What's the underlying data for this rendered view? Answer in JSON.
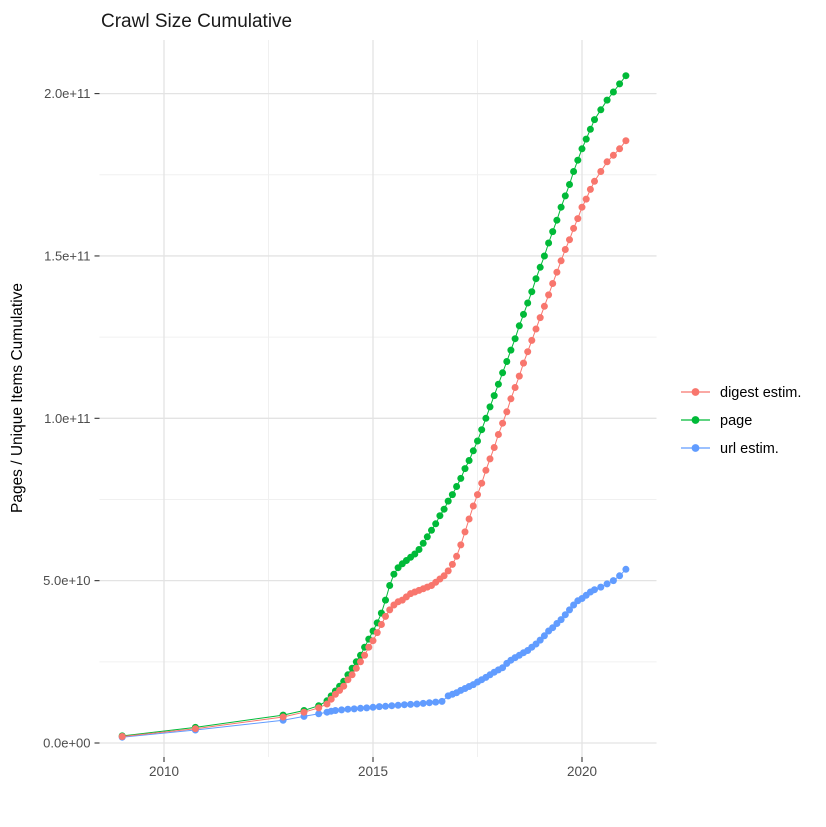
{
  "title": "Crawl Size Cumulative",
  "y_axis": {
    "label": "Pages / Unique Items Cumulative",
    "ticks": [
      {
        "value": 0,
        "label": "0.0e+00"
      },
      {
        "value": 50,
        "label": "5.0e+10"
      },
      {
        "value": 100,
        "label": "1.0e+11"
      },
      {
        "value": 150,
        "label": "1.5e+11"
      },
      {
        "value": 200,
        "label": "2.0e+11"
      }
    ],
    "minor_ticks": [
      25,
      75,
      125,
      175
    ]
  },
  "x_axis": {
    "ticks": [
      {
        "value": 2010,
        "label": "2010"
      },
      {
        "value": 2015,
        "label": "2015"
      },
      {
        "value": 2020,
        "label": "2020"
      }
    ],
    "minor_ticks": [
      2012.5,
      2017.5
    ]
  },
  "legend": {
    "items": [
      {
        "id": "digest",
        "label": "digest estim.",
        "color": "#F8766D"
      },
      {
        "id": "page",
        "label": "page",
        "color": "#00BA38"
      },
      {
        "id": "url",
        "label": "url estim.",
        "color": "#619CFF"
      }
    ]
  },
  "colors": {
    "digest": "#F8766D",
    "page": "#00BA38",
    "url": "#619CFF",
    "grid_major": "#E3E3E3",
    "grid_minor": "#F0F0F0",
    "tick_mark": "#333333",
    "tick_text": "#4D4D4D",
    "title_text": "#1A1A1A",
    "axis_title_text": "#000000"
  },
  "chart_data": {
    "type": "line",
    "title": "Crawl Size Cumulative",
    "xlabel": "",
    "ylabel": "Pages / Unique Items Cumulative",
    "x_unit": "year (decimal)",
    "y_unit": "billions (1e9) of pages / unique items",
    "xlim": [
      2008.5,
      2021.8
    ],
    "ylim_billions": [
      -4,
      216
    ],
    "grid": true,
    "legend_position": "right",
    "series": [
      {
        "name": "url estim.",
        "color": "#619CFF",
        "points": [
          [
            2009.0,
            1.8
          ],
          [
            2010.75,
            4.0
          ],
          [
            2012.85,
            7.0
          ],
          [
            2013.35,
            8.2
          ],
          [
            2013.7,
            9.0
          ],
          [
            2013.9,
            9.5
          ],
          [
            2014.0,
            9.8
          ],
          [
            2014.1,
            10.0
          ],
          [
            2014.25,
            10.2
          ],
          [
            2014.4,
            10.4
          ],
          [
            2014.55,
            10.5
          ],
          [
            2014.7,
            10.7
          ],
          [
            2014.85,
            10.8
          ],
          [
            2015.0,
            11.0
          ],
          [
            2015.15,
            11.2
          ],
          [
            2015.3,
            11.3
          ],
          [
            2015.45,
            11.5
          ],
          [
            2015.6,
            11.6
          ],
          [
            2015.75,
            11.8
          ],
          [
            2015.9,
            11.9
          ],
          [
            2016.05,
            12.0
          ],
          [
            2016.2,
            12.2
          ],
          [
            2016.35,
            12.4
          ],
          [
            2016.5,
            12.6
          ],
          [
            2016.65,
            12.8
          ],
          [
            2016.8,
            14.5
          ],
          [
            2016.9,
            15.0
          ],
          [
            2017.0,
            15.5
          ],
          [
            2017.1,
            16.2
          ],
          [
            2017.2,
            16.8
          ],
          [
            2017.3,
            17.4
          ],
          [
            2017.4,
            18.0
          ],
          [
            2017.5,
            18.8
          ],
          [
            2017.6,
            19.5
          ],
          [
            2017.7,
            20.2
          ],
          [
            2017.8,
            21.0
          ],
          [
            2017.9,
            21.8
          ],
          [
            2018.0,
            22.5
          ],
          [
            2018.1,
            23.2
          ],
          [
            2018.2,
            24.5
          ],
          [
            2018.3,
            25.5
          ],
          [
            2018.4,
            26.3
          ],
          [
            2018.5,
            27.0
          ],
          [
            2018.6,
            27.8
          ],
          [
            2018.7,
            28.5
          ],
          [
            2018.8,
            29.5
          ],
          [
            2018.9,
            30.5
          ],
          [
            2019.0,
            31.7
          ],
          [
            2019.1,
            33.0
          ],
          [
            2019.2,
            34.5
          ],
          [
            2019.3,
            35.5
          ],
          [
            2019.4,
            36.8
          ],
          [
            2019.5,
            38.0
          ],
          [
            2019.6,
            39.5
          ],
          [
            2019.7,
            41.0
          ],
          [
            2019.8,
            42.5
          ],
          [
            2019.9,
            43.8
          ],
          [
            2020.0,
            44.5
          ],
          [
            2020.1,
            45.5
          ],
          [
            2020.2,
            46.5
          ],
          [
            2020.3,
            47.2
          ],
          [
            2020.45,
            48.0
          ],
          [
            2020.6,
            49.0
          ],
          [
            2020.75,
            50.0
          ],
          [
            2020.9,
            51.5
          ],
          [
            2021.05,
            53.5
          ]
        ]
      },
      {
        "name": "page",
        "color": "#00BA38",
        "points": [
          [
            2009.0,
            2.2
          ],
          [
            2010.75,
            4.8
          ],
          [
            2012.85,
            8.6
          ],
          [
            2013.35,
            10.0
          ],
          [
            2013.7,
            11.5
          ],
          [
            2013.9,
            13.0
          ],
          [
            2014.0,
            14.5
          ],
          [
            2014.1,
            16.0
          ],
          [
            2014.2,
            17.5
          ],
          [
            2014.3,
            19.0
          ],
          [
            2014.4,
            21.0
          ],
          [
            2014.5,
            23.0
          ],
          [
            2014.6,
            25.0
          ],
          [
            2014.7,
            27.0
          ],
          [
            2014.8,
            29.5
          ],
          [
            2014.9,
            32.0
          ],
          [
            2015.0,
            34.5
          ],
          [
            2015.1,
            37.0
          ],
          [
            2015.2,
            40.0
          ],
          [
            2015.3,
            44.0
          ],
          [
            2015.4,
            48.5
          ],
          [
            2015.5,
            52.0
          ],
          [
            2015.6,
            54.0
          ],
          [
            2015.7,
            55.2
          ],
          [
            2015.8,
            56.2
          ],
          [
            2015.9,
            57.2
          ],
          [
            2016.0,
            58.2
          ],
          [
            2016.1,
            59.6
          ],
          [
            2016.2,
            61.5
          ],
          [
            2016.3,
            63.5
          ],
          [
            2016.4,
            65.5
          ],
          [
            2016.5,
            67.5
          ],
          [
            2016.6,
            70.0
          ],
          [
            2016.7,
            72.0
          ],
          [
            2016.8,
            74.5
          ],
          [
            2016.9,
            76.5
          ],
          [
            2017.0,
            79.0
          ],
          [
            2017.1,
            81.5
          ],
          [
            2017.2,
            84.5
          ],
          [
            2017.3,
            87.0
          ],
          [
            2017.4,
            90.0
          ],
          [
            2017.5,
            93.0
          ],
          [
            2017.6,
            96.5
          ],
          [
            2017.7,
            100.0
          ],
          [
            2017.8,
            103.5
          ],
          [
            2017.9,
            107.0
          ],
          [
            2018.0,
            110.5
          ],
          [
            2018.1,
            114.0
          ],
          [
            2018.2,
            117.5
          ],
          [
            2018.3,
            121.0
          ],
          [
            2018.4,
            124.5
          ],
          [
            2018.5,
            128.5
          ],
          [
            2018.6,
            132.0
          ],
          [
            2018.7,
            135.5
          ],
          [
            2018.8,
            139.0
          ],
          [
            2018.9,
            143.0
          ],
          [
            2019.0,
            146.5
          ],
          [
            2019.1,
            150.0
          ],
          [
            2019.2,
            154.0
          ],
          [
            2019.3,
            157.5
          ],
          [
            2019.4,
            161.0
          ],
          [
            2019.5,
            165.0
          ],
          [
            2019.6,
            168.5
          ],
          [
            2019.7,
            172.0
          ],
          [
            2019.8,
            176.0
          ],
          [
            2019.9,
            179.5
          ],
          [
            2020.0,
            183.0
          ],
          [
            2020.1,
            186.0
          ],
          [
            2020.2,
            189.0
          ],
          [
            2020.3,
            192.0
          ],
          [
            2020.45,
            195.0
          ],
          [
            2020.6,
            198.0
          ],
          [
            2020.75,
            200.5
          ],
          [
            2020.9,
            203.0
          ],
          [
            2021.05,
            205.5
          ]
        ]
      },
      {
        "name": "digest estim.",
        "color": "#F8766D",
        "points": [
          [
            2009.0,
            2.0
          ],
          [
            2010.75,
            4.4
          ],
          [
            2012.85,
            8.0
          ],
          [
            2013.35,
            9.5
          ],
          [
            2013.7,
            10.8
          ],
          [
            2013.9,
            12.0
          ],
          [
            2014.0,
            13.5
          ],
          [
            2014.1,
            15.0
          ],
          [
            2014.2,
            16.2
          ],
          [
            2014.3,
            17.5
          ],
          [
            2014.4,
            19.5
          ],
          [
            2014.5,
            21.0
          ],
          [
            2014.6,
            23.0
          ],
          [
            2014.7,
            25.0
          ],
          [
            2014.8,
            27.0
          ],
          [
            2014.9,
            29.5
          ],
          [
            2015.0,
            31.5
          ],
          [
            2015.1,
            34.0
          ],
          [
            2015.2,
            36.5
          ],
          [
            2015.3,
            39.0
          ],
          [
            2015.4,
            41.0
          ],
          [
            2015.5,
            42.5
          ],
          [
            2015.6,
            43.5
          ],
          [
            2015.7,
            44.0
          ],
          [
            2015.8,
            45.0
          ],
          [
            2015.9,
            46.0
          ],
          [
            2016.0,
            46.5
          ],
          [
            2016.1,
            47.0
          ],
          [
            2016.2,
            47.5
          ],
          [
            2016.3,
            48.0
          ],
          [
            2016.4,
            48.5
          ],
          [
            2016.5,
            49.5
          ],
          [
            2016.6,
            50.5
          ],
          [
            2016.7,
            51.5
          ],
          [
            2016.8,
            53.0
          ],
          [
            2016.9,
            55.0
          ],
          [
            2017.0,
            57.5
          ],
          [
            2017.1,
            61.0
          ],
          [
            2017.2,
            65.0
          ],
          [
            2017.3,
            69.0
          ],
          [
            2017.4,
            73.0
          ],
          [
            2017.5,
            76.5
          ],
          [
            2017.6,
            80.0
          ],
          [
            2017.7,
            84.0
          ],
          [
            2017.8,
            87.5
          ],
          [
            2017.9,
            91.0
          ],
          [
            2018.0,
            95.0
          ],
          [
            2018.1,
            98.5
          ],
          [
            2018.2,
            102.0
          ],
          [
            2018.3,
            106.0
          ],
          [
            2018.4,
            109.5
          ],
          [
            2018.5,
            113.0
          ],
          [
            2018.6,
            117.0
          ],
          [
            2018.7,
            120.5
          ],
          [
            2018.8,
            124.0
          ],
          [
            2018.9,
            127.5
          ],
          [
            2019.0,
            131.0
          ],
          [
            2019.1,
            134.5
          ],
          [
            2019.2,
            138.0
          ],
          [
            2019.3,
            141.5
          ],
          [
            2019.4,
            145.0
          ],
          [
            2019.5,
            148.5
          ],
          [
            2019.6,
            152.0
          ],
          [
            2019.7,
            155.0
          ],
          [
            2019.8,
            158.5
          ],
          [
            2019.9,
            161.5
          ],
          [
            2020.0,
            165.0
          ],
          [
            2020.1,
            167.5
          ],
          [
            2020.2,
            170.5
          ],
          [
            2020.3,
            173.0
          ],
          [
            2020.45,
            176.0
          ],
          [
            2020.6,
            179.0
          ],
          [
            2020.75,
            181.0
          ],
          [
            2020.9,
            183.0
          ],
          [
            2021.05,
            185.5
          ]
        ]
      }
    ]
  }
}
